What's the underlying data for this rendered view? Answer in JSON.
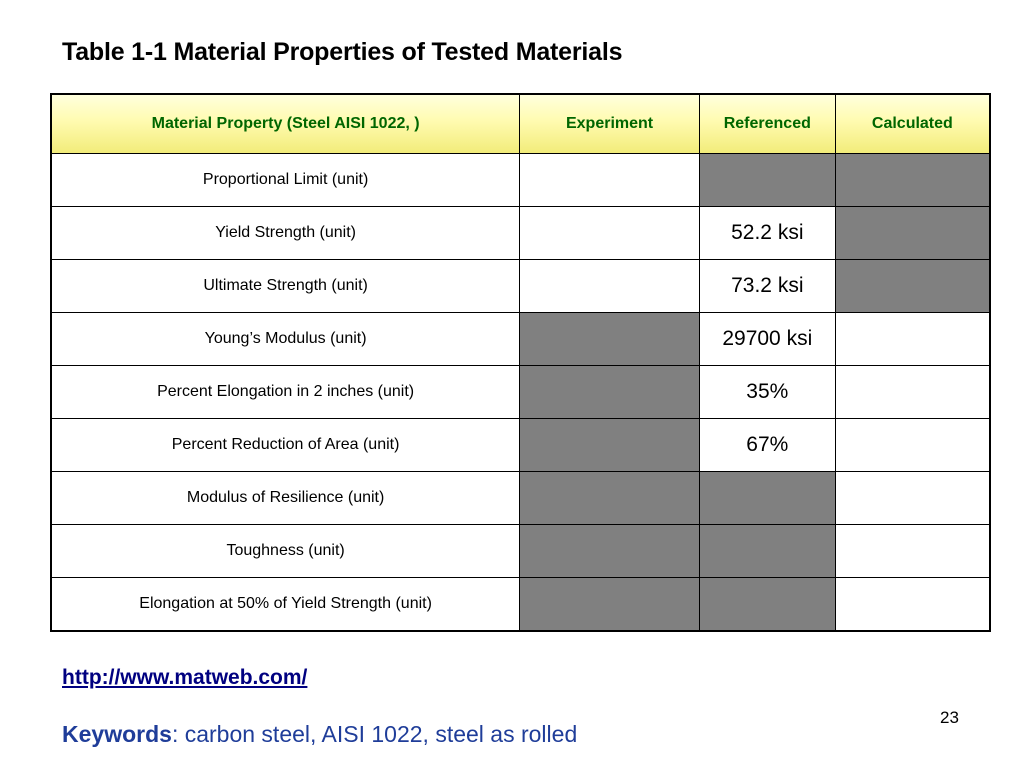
{
  "title": "Table 1-1 Material Properties of Tested Materials",
  "table": {
    "headers": [
      "Material Property (Steel AISI 1022, )",
      "Experiment",
      "Referenced",
      "Calculated"
    ],
    "rows": [
      {
        "property": "Proportional Limit (unit)",
        "experiment": "",
        "referenced": "",
        "calculated": "",
        "shaded": [
          false,
          true,
          true
        ]
      },
      {
        "property": "Yield Strength (unit)",
        "experiment": "",
        "referenced": "52.2 ksi",
        "calculated": "",
        "shaded": [
          false,
          false,
          true
        ]
      },
      {
        "property": "Ultimate Strength (unit)",
        "experiment": "",
        "referenced": "73.2 ksi",
        "calculated": "",
        "shaded": [
          false,
          false,
          true
        ]
      },
      {
        "property": "Young’s Modulus (unit)",
        "experiment": "",
        "referenced": "29700 ksi",
        "calculated": "",
        "shaded": [
          true,
          false,
          false
        ]
      },
      {
        "property": "Percent Elongation in 2 inches (unit)",
        "experiment": "",
        "referenced": "35%",
        "calculated": "",
        "shaded": [
          true,
          false,
          false
        ]
      },
      {
        "property": "Percent Reduction of Area (unit)",
        "experiment": "",
        "referenced": "67%",
        "calculated": "",
        "shaded": [
          true,
          false,
          false
        ]
      },
      {
        "property": "Modulus of Resilience (unit)",
        "experiment": "",
        "referenced": "",
        "calculated": "",
        "shaded": [
          true,
          true,
          false
        ]
      },
      {
        "property": "Toughness (unit)",
        "experiment": "",
        "referenced": "",
        "calculated": "",
        "shaded": [
          true,
          true,
          false
        ]
      },
      {
        "property": "Elongation at 50% of Yield Strength (unit)",
        "experiment": "",
        "referenced": "",
        "calculated": "",
        "shaded": [
          true,
          true,
          false
        ]
      }
    ]
  },
  "link": {
    "text": "http://www.matweb.com/"
  },
  "page_number": "23",
  "keywords": {
    "label": "Keywords",
    "text": ": carbon steel, AISI 1022, steel as rolled"
  },
  "colors": {
    "header_text": "#006600",
    "shaded_cell": "#808080",
    "link": "#000080",
    "keywords": "#1f3d99"
  }
}
